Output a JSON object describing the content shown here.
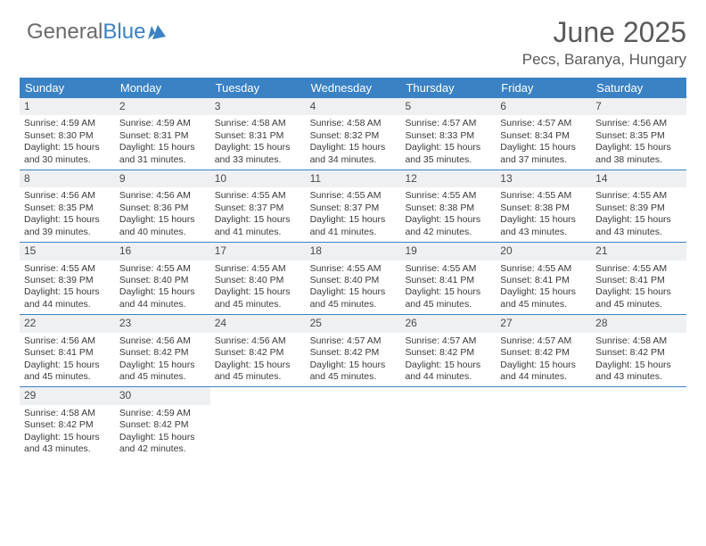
{
  "logo": {
    "part1": "General",
    "part2": "Blue"
  },
  "header": {
    "title": "June 2025",
    "location": "Pecs, Baranya, Hungary"
  },
  "colors": {
    "accent": "#3b82c4",
    "header_text": "#5a5a5a",
    "daynum_bg": "#eef0f1",
    "body_text": "#3a3a3a",
    "logo_gray": "#6b6b6b"
  },
  "day_headers": [
    "Sunday",
    "Monday",
    "Tuesday",
    "Wednesday",
    "Thursday",
    "Friday",
    "Saturday"
  ],
  "weeks": [
    [
      {
        "n": "1",
        "sunrise": "4:59 AM",
        "sunset": "8:30 PM",
        "daylight": "15 hours and 30 minutes."
      },
      {
        "n": "2",
        "sunrise": "4:59 AM",
        "sunset": "8:31 PM",
        "daylight": "15 hours and 31 minutes."
      },
      {
        "n": "3",
        "sunrise": "4:58 AM",
        "sunset": "8:31 PM",
        "daylight": "15 hours and 33 minutes."
      },
      {
        "n": "4",
        "sunrise": "4:58 AM",
        "sunset": "8:32 PM",
        "daylight": "15 hours and 34 minutes."
      },
      {
        "n": "5",
        "sunrise": "4:57 AM",
        "sunset": "8:33 PM",
        "daylight": "15 hours and 35 minutes."
      },
      {
        "n": "6",
        "sunrise": "4:57 AM",
        "sunset": "8:34 PM",
        "daylight": "15 hours and 37 minutes."
      },
      {
        "n": "7",
        "sunrise": "4:56 AM",
        "sunset": "8:35 PM",
        "daylight": "15 hours and 38 minutes."
      }
    ],
    [
      {
        "n": "8",
        "sunrise": "4:56 AM",
        "sunset": "8:35 PM",
        "daylight": "15 hours and 39 minutes."
      },
      {
        "n": "9",
        "sunrise": "4:56 AM",
        "sunset": "8:36 PM",
        "daylight": "15 hours and 40 minutes."
      },
      {
        "n": "10",
        "sunrise": "4:55 AM",
        "sunset": "8:37 PM",
        "daylight": "15 hours and 41 minutes."
      },
      {
        "n": "11",
        "sunrise": "4:55 AM",
        "sunset": "8:37 PM",
        "daylight": "15 hours and 41 minutes."
      },
      {
        "n": "12",
        "sunrise": "4:55 AM",
        "sunset": "8:38 PM",
        "daylight": "15 hours and 42 minutes."
      },
      {
        "n": "13",
        "sunrise": "4:55 AM",
        "sunset": "8:38 PM",
        "daylight": "15 hours and 43 minutes."
      },
      {
        "n": "14",
        "sunrise": "4:55 AM",
        "sunset": "8:39 PM",
        "daylight": "15 hours and 43 minutes."
      }
    ],
    [
      {
        "n": "15",
        "sunrise": "4:55 AM",
        "sunset": "8:39 PM",
        "daylight": "15 hours and 44 minutes."
      },
      {
        "n": "16",
        "sunrise": "4:55 AM",
        "sunset": "8:40 PM",
        "daylight": "15 hours and 44 minutes."
      },
      {
        "n": "17",
        "sunrise": "4:55 AM",
        "sunset": "8:40 PM",
        "daylight": "15 hours and 45 minutes."
      },
      {
        "n": "18",
        "sunrise": "4:55 AM",
        "sunset": "8:40 PM",
        "daylight": "15 hours and 45 minutes."
      },
      {
        "n": "19",
        "sunrise": "4:55 AM",
        "sunset": "8:41 PM",
        "daylight": "15 hours and 45 minutes."
      },
      {
        "n": "20",
        "sunrise": "4:55 AM",
        "sunset": "8:41 PM",
        "daylight": "15 hours and 45 minutes."
      },
      {
        "n": "21",
        "sunrise": "4:55 AM",
        "sunset": "8:41 PM",
        "daylight": "15 hours and 45 minutes."
      }
    ],
    [
      {
        "n": "22",
        "sunrise": "4:56 AM",
        "sunset": "8:41 PM",
        "daylight": "15 hours and 45 minutes."
      },
      {
        "n": "23",
        "sunrise": "4:56 AM",
        "sunset": "8:42 PM",
        "daylight": "15 hours and 45 minutes."
      },
      {
        "n": "24",
        "sunrise": "4:56 AM",
        "sunset": "8:42 PM",
        "daylight": "15 hours and 45 minutes."
      },
      {
        "n": "25",
        "sunrise": "4:57 AM",
        "sunset": "8:42 PM",
        "daylight": "15 hours and 45 minutes."
      },
      {
        "n": "26",
        "sunrise": "4:57 AM",
        "sunset": "8:42 PM",
        "daylight": "15 hours and 44 minutes."
      },
      {
        "n": "27",
        "sunrise": "4:57 AM",
        "sunset": "8:42 PM",
        "daylight": "15 hours and 44 minutes."
      },
      {
        "n": "28",
        "sunrise": "4:58 AM",
        "sunset": "8:42 PM",
        "daylight": "15 hours and 43 minutes."
      }
    ],
    [
      {
        "n": "29",
        "sunrise": "4:58 AM",
        "sunset": "8:42 PM",
        "daylight": "15 hours and 43 minutes."
      },
      {
        "n": "30",
        "sunrise": "4:59 AM",
        "sunset": "8:42 PM",
        "daylight": "15 hours and 42 minutes."
      },
      null,
      null,
      null,
      null,
      null
    ]
  ],
  "labels": {
    "sunrise": "Sunrise: ",
    "sunset": "Sunset: ",
    "daylight": "Daylight: "
  }
}
